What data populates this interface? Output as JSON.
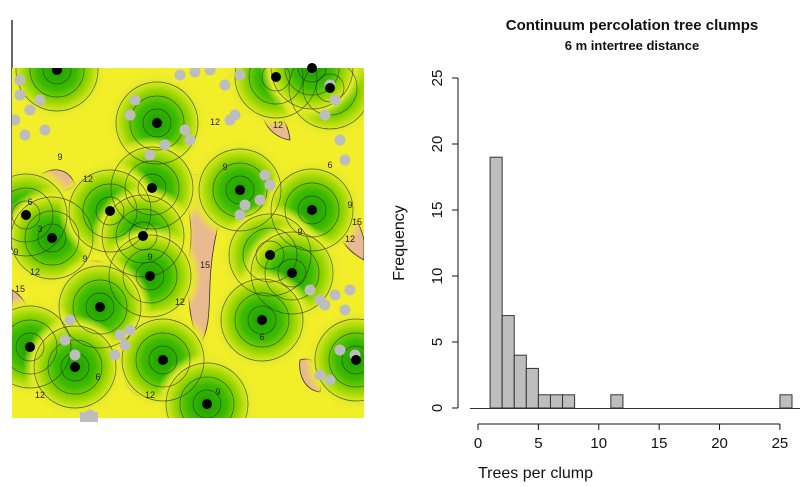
{
  "chart_data": [
    {
      "type": "heatmap",
      "title": "",
      "xlabel": "",
      "ylabel": "",
      "contour_levels": [
        "3",
        "6",
        "9",
        "12",
        "15"
      ],
      "colors": {
        "near": "#1fae00",
        "mid": "#8fd400",
        "yellow": "#f2ee2a",
        "far": "#e9b98f",
        "tree_cluster": "#bdbdbd",
        "clump_center": "#000000"
      }
    },
    {
      "type": "bar",
      "title": "Continuum percolation tree clumps",
      "subtitle": "6 m intertree distance",
      "xlabel": "Trees per clump",
      "ylabel": "Frequency",
      "xlim": [
        0,
        26
      ],
      "ylim": [
        0,
        25
      ],
      "x_ticks": [
        "0",
        "5",
        "10",
        "15",
        "20",
        "25"
      ],
      "y_ticks": [
        "0",
        "5",
        "10",
        "15",
        "20",
        "25"
      ],
      "bin_width": 1,
      "bins": [
        {
          "start": 1,
          "end": 2,
          "count": 19
        },
        {
          "start": 2,
          "end": 3,
          "count": 7
        },
        {
          "start": 3,
          "end": 4,
          "count": 4
        },
        {
          "start": 4,
          "end": 5,
          "count": 3
        },
        {
          "start": 5,
          "end": 6,
          "count": 1
        },
        {
          "start": 6,
          "end": 7,
          "count": 1
        },
        {
          "start": 7,
          "end": 8,
          "count": 1
        },
        {
          "start": 11,
          "end": 12,
          "count": 1
        },
        {
          "start": 25,
          "end": 26,
          "count": 1
        }
      ],
      "bar_color": "#bebebe"
    }
  ]
}
